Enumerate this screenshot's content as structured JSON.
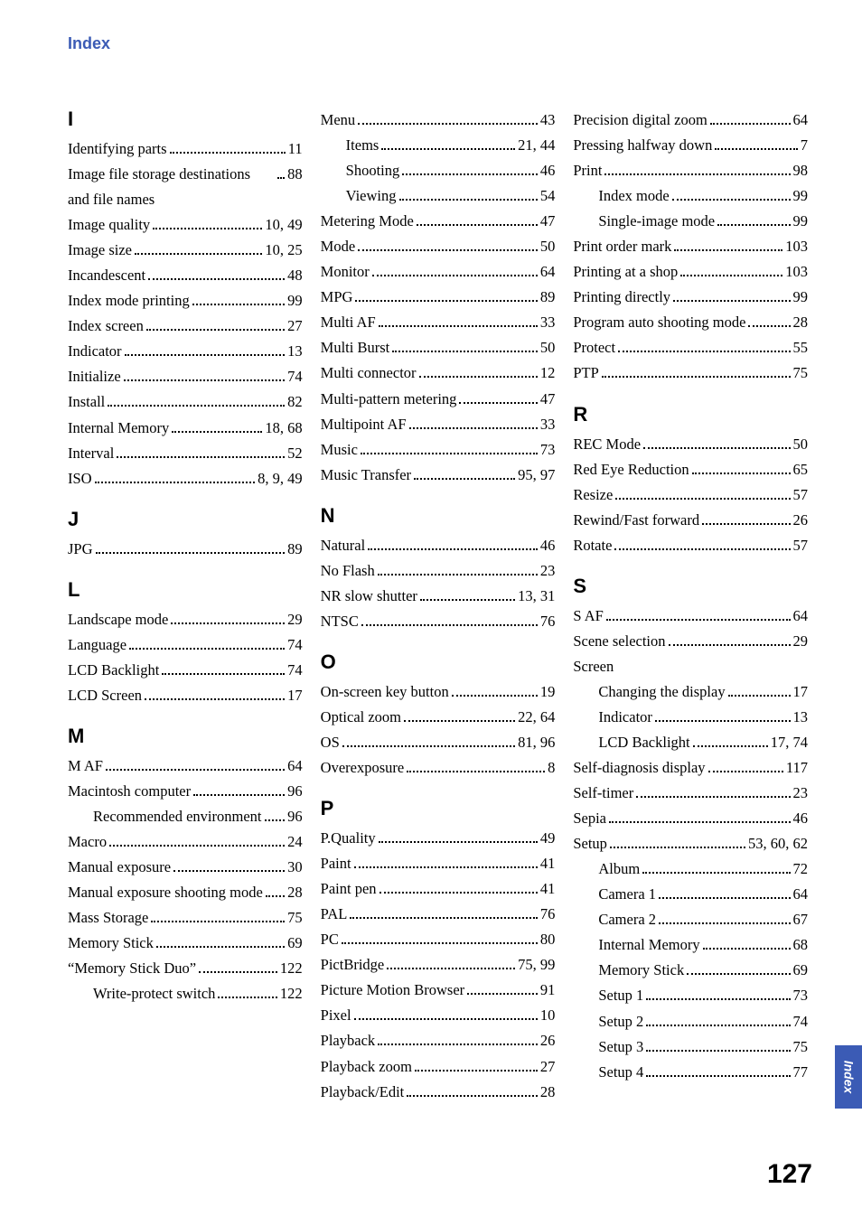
{
  "header": "Index",
  "side_tab": "Index",
  "page_number": "127",
  "colors": {
    "brand": "#3b5bb5",
    "text": "#000000",
    "bg": "#ffffff"
  },
  "typography": {
    "body_font": "Times New Roman",
    "heading_font": "Arial",
    "body_size_pt": 12,
    "heading_size_pt": 17
  },
  "columns": [
    [
      {
        "type": "letter",
        "text": "I"
      },
      {
        "type": "entry",
        "term": "Identifying parts",
        "page": "11"
      },
      {
        "type": "entry",
        "term": "Image file storage destinations and file names",
        "page": "88"
      },
      {
        "type": "entry",
        "term": "Image quality",
        "page": "10, 49"
      },
      {
        "type": "entry",
        "term": "Image size",
        "page": "10, 25"
      },
      {
        "type": "entry",
        "term": "Incandescent",
        "page": "48"
      },
      {
        "type": "entry",
        "term": "Index mode printing",
        "page": "99"
      },
      {
        "type": "entry",
        "term": "Index screen",
        "page": "27"
      },
      {
        "type": "entry",
        "term": "Indicator",
        "page": "13"
      },
      {
        "type": "entry",
        "term": "Initialize",
        "page": "74"
      },
      {
        "type": "entry",
        "term": "Install",
        "page": "82"
      },
      {
        "type": "entry",
        "term": "Internal Memory",
        "page": "18, 68"
      },
      {
        "type": "entry",
        "term": "Interval",
        "page": "52"
      },
      {
        "type": "entry",
        "term": "ISO",
        "page": "8, 9, 49"
      },
      {
        "type": "letter",
        "text": "J"
      },
      {
        "type": "entry",
        "term": "JPG",
        "page": "89"
      },
      {
        "type": "letter",
        "text": "L"
      },
      {
        "type": "entry",
        "term": "Landscape mode",
        "page": "29"
      },
      {
        "type": "entry",
        "term": "Language",
        "page": "74"
      },
      {
        "type": "entry",
        "term": "LCD Backlight",
        "page": "74"
      },
      {
        "type": "entry",
        "term": "LCD Screen",
        "page": "17"
      },
      {
        "type": "letter",
        "text": "M"
      },
      {
        "type": "entry",
        "term": "M AF",
        "page": "64"
      },
      {
        "type": "entry",
        "term": "Macintosh computer",
        "page": "96"
      },
      {
        "type": "entry",
        "term": "Recommended environment",
        "page": "96",
        "indent": 1
      },
      {
        "type": "entry",
        "term": "Macro",
        "page": "24"
      },
      {
        "type": "entry",
        "term": "Manual exposure",
        "page": "30"
      },
      {
        "type": "entry",
        "term": "Manual exposure shooting mode",
        "page": "28"
      },
      {
        "type": "entry",
        "term": "Mass Storage",
        "page": "75"
      },
      {
        "type": "entry",
        "term": "Memory Stick",
        "page": "69"
      },
      {
        "type": "entry",
        "term": "“Memory Stick Duo”",
        "page": "122"
      },
      {
        "type": "entry",
        "term": "Write-protect switch",
        "page": "122",
        "indent": 1
      }
    ],
    [
      {
        "type": "entry",
        "term": "Menu",
        "page": "43"
      },
      {
        "type": "entry",
        "term": "Items",
        "page": "21, 44",
        "indent": 1
      },
      {
        "type": "entry",
        "term": "Shooting",
        "page": "46",
        "indent": 1
      },
      {
        "type": "entry",
        "term": "Viewing",
        "page": "54",
        "indent": 1
      },
      {
        "type": "entry",
        "term": "Metering Mode",
        "page": "47"
      },
      {
        "type": "entry",
        "term": "Mode",
        "page": "50"
      },
      {
        "type": "entry",
        "term": "Monitor",
        "page": "64"
      },
      {
        "type": "entry",
        "term": "MPG",
        "page": "89"
      },
      {
        "type": "entry",
        "term": "Multi AF",
        "page": "33"
      },
      {
        "type": "entry",
        "term": "Multi Burst",
        "page": "50"
      },
      {
        "type": "entry",
        "term": "Multi connector",
        "page": "12"
      },
      {
        "type": "entry",
        "term": "Multi-pattern metering",
        "page": "47"
      },
      {
        "type": "entry",
        "term": "Multipoint AF",
        "page": "33"
      },
      {
        "type": "entry",
        "term": "Music",
        "page": "73"
      },
      {
        "type": "entry",
        "term": "Music Transfer",
        "page": "95, 97"
      },
      {
        "type": "letter",
        "text": "N"
      },
      {
        "type": "entry",
        "term": "Natural",
        "page": "46"
      },
      {
        "type": "entry",
        "term": "No Flash",
        "page": "23"
      },
      {
        "type": "entry",
        "term": "NR slow shutter",
        "page": "13, 31"
      },
      {
        "type": "entry",
        "term": "NTSC",
        "page": "76"
      },
      {
        "type": "letter",
        "text": "O"
      },
      {
        "type": "entry",
        "term": "On-screen key button",
        "page": "19"
      },
      {
        "type": "entry",
        "term": "Optical zoom",
        "page": "22, 64"
      },
      {
        "type": "entry",
        "term": "OS",
        "page": "81, 96"
      },
      {
        "type": "entry",
        "term": "Overexposure",
        "page": "8"
      },
      {
        "type": "letter",
        "text": "P"
      },
      {
        "type": "entry",
        "term": "P.Quality",
        "page": "49"
      },
      {
        "type": "entry",
        "term": "Paint",
        "page": "41"
      },
      {
        "type": "entry",
        "term": "Paint pen",
        "page": "41"
      },
      {
        "type": "entry",
        "term": "PAL",
        "page": "76"
      },
      {
        "type": "entry",
        "term": "PC",
        "page": "80"
      },
      {
        "type": "entry",
        "term": "PictBridge",
        "page": "75, 99"
      },
      {
        "type": "entry",
        "term": "Picture Motion Browser",
        "page": "91"
      },
      {
        "type": "entry",
        "term": "Pixel",
        "page": "10"
      },
      {
        "type": "entry",
        "term": "Playback",
        "page": "26"
      },
      {
        "type": "entry",
        "term": "Playback zoom",
        "page": "27"
      },
      {
        "type": "entry",
        "term": "Playback/Edit",
        "page": "28"
      }
    ],
    [
      {
        "type": "entry",
        "term": "Precision digital zoom",
        "page": "64"
      },
      {
        "type": "entry",
        "term": "Pressing halfway down",
        "page": "7"
      },
      {
        "type": "entry",
        "term": "Print",
        "page": "98"
      },
      {
        "type": "entry",
        "term": "Index mode",
        "page": "99",
        "indent": 1
      },
      {
        "type": "entry",
        "term": "Single-image mode",
        "page": "99",
        "indent": 1
      },
      {
        "type": "entry",
        "term": "Print order mark",
        "page": "103"
      },
      {
        "type": "entry",
        "term": "Printing at a shop",
        "page": "103"
      },
      {
        "type": "entry",
        "term": "Printing directly",
        "page": "99"
      },
      {
        "type": "entry",
        "term": "Program auto shooting mode",
        "page": "28"
      },
      {
        "type": "entry",
        "term": "Protect",
        "page": "55"
      },
      {
        "type": "entry",
        "term": "PTP",
        "page": "75"
      },
      {
        "type": "letter",
        "text": "R"
      },
      {
        "type": "entry",
        "term": "REC Mode",
        "page": "50"
      },
      {
        "type": "entry",
        "term": "Red Eye Reduction",
        "page": "65"
      },
      {
        "type": "entry",
        "term": "Resize",
        "page": "57"
      },
      {
        "type": "entry",
        "term": "Rewind/Fast forward",
        "page": "26"
      },
      {
        "type": "entry",
        "term": "Rotate",
        "page": "57"
      },
      {
        "type": "letter",
        "text": "S"
      },
      {
        "type": "entry",
        "term": "S AF",
        "page": "64"
      },
      {
        "type": "entry",
        "term": "Scene selection",
        "page": "29"
      },
      {
        "type": "entry",
        "term": "Screen",
        "noline": true
      },
      {
        "type": "entry",
        "term": "Changing the display",
        "page": "17",
        "indent": 1
      },
      {
        "type": "entry",
        "term": "Indicator",
        "page": "13",
        "indent": 1
      },
      {
        "type": "entry",
        "term": "LCD Backlight",
        "page": "17, 74",
        "indent": 1
      },
      {
        "type": "entry",
        "term": "Self-diagnosis display",
        "page": "117"
      },
      {
        "type": "entry",
        "term": "Self-timer",
        "page": "23"
      },
      {
        "type": "entry",
        "term": "Sepia",
        "page": "46"
      },
      {
        "type": "entry",
        "term": "Setup",
        "page": "53, 60, 62"
      },
      {
        "type": "entry",
        "term": "Album",
        "page": "72",
        "indent": 1
      },
      {
        "type": "entry",
        "term": "Camera 1",
        "page": "64",
        "indent": 1
      },
      {
        "type": "entry",
        "term": "Camera 2",
        "page": "67",
        "indent": 1
      },
      {
        "type": "entry",
        "term": "Internal Memory",
        "page": "68",
        "indent": 1
      },
      {
        "type": "entry",
        "term": "Memory Stick",
        "page": "69",
        "indent": 1
      },
      {
        "type": "entry",
        "term": "Setup 1",
        "page": "73",
        "indent": 1
      },
      {
        "type": "entry",
        "term": "Setup 2",
        "page": "74",
        "indent": 1
      },
      {
        "type": "entry",
        "term": "Setup 3",
        "page": "75",
        "indent": 1
      },
      {
        "type": "entry",
        "term": "Setup 4",
        "page": "77",
        "indent": 1
      }
    ]
  ]
}
